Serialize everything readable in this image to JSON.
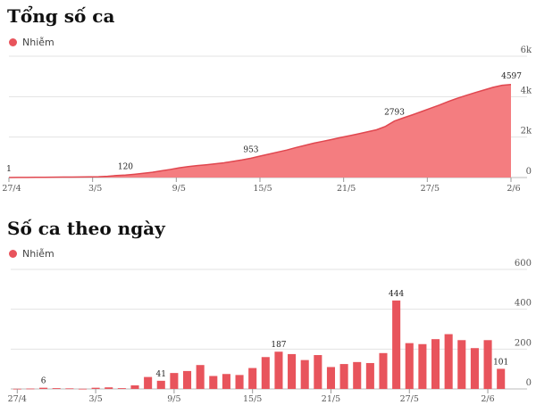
{
  "chart_data": [
    {
      "type": "area",
      "title": "Tổng số ca",
      "legend": [
        {
          "name": "Nhiễm",
          "color": "#e8545c"
        }
      ],
      "series": [
        {
          "name": "Nhiễm",
          "color": "#e8545c",
          "fill": "#f47d80",
          "values": [
            1,
            3,
            6,
            9,
            13,
            16,
            20,
            24,
            28,
            32,
            40,
            60,
            100,
            120,
            160,
            210,
            260,
            330,
            400,
            480,
            540,
            590,
            630,
            680,
            730,
            800,
            870,
            953,
            1060,
            1160,
            1260,
            1360,
            1480,
            1590,
            1700,
            1790,
            1880,
            1980,
            2070,
            2160,
            2260,
            2360,
            2530,
            2793,
            2950,
            3100,
            3260,
            3420,
            3580,
            3760,
            3920,
            4060,
            4200,
            4330,
            4460,
            4560,
            4597
          ]
        }
      ],
      "x_tick_labels": [
        "27/4",
        "3/5",
        "9/5",
        "15/5",
        "21/5",
        "27/5",
        "2/6"
      ],
      "x_tick_indices": [
        0,
        6,
        12,
        18,
        24,
        30,
        36
      ],
      "y_ticks": [
        0,
        2000,
        4000,
        6000
      ],
      "y_tick_labels": [
        "0",
        "2k",
        "4k",
        "6k"
      ],
      "ylim": [
        0,
        6000
      ],
      "data_labels": [
        {
          "index": 0,
          "text": "1"
        },
        {
          "index": 13,
          "text": "120"
        },
        {
          "index": 27,
          "text": "953"
        },
        {
          "index": 43,
          "text": "2793"
        },
        {
          "index": 56,
          "text": "4597"
        }
      ]
    },
    {
      "type": "bar",
      "title": "Số ca theo ngày",
      "legend": [
        {
          "name": "Nhiễm",
          "color": "#e8545c"
        }
      ],
      "series": [
        {
          "name": "Nhiễm",
          "color": "#e8545c",
          "values": [
            1,
            2,
            6,
            4,
            3,
            1,
            6,
            8,
            4,
            18,
            60,
            41,
            80,
            90,
            120,
            65,
            75,
            70,
            105,
            160,
            187,
            175,
            145,
            170,
            110,
            125,
            135,
            130,
            180,
            444,
            230,
            225,
            250,
            275,
            245,
            205,
            245,
            101
          ]
        }
      ],
      "x_tick_labels": [
        "27/4",
        "3/5",
        "9/5",
        "15/5",
        "21/5",
        "27/5",
        "2/6"
      ],
      "x_tick_indices": [
        0,
        6,
        12,
        18,
        24,
        30,
        36
      ],
      "y_ticks": [
        0,
        200,
        400,
        600
      ],
      "y_tick_labels": [
        "0",
        "200",
        "400",
        "600"
      ],
      "ylim": [
        0,
        600
      ],
      "data_labels": [
        {
          "index": 2,
          "text": "6"
        },
        {
          "index": 11,
          "text": "41"
        },
        {
          "index": 20,
          "text": "187"
        },
        {
          "index": 29,
          "text": "444"
        },
        {
          "index": 37,
          "text": "101"
        }
      ]
    }
  ]
}
